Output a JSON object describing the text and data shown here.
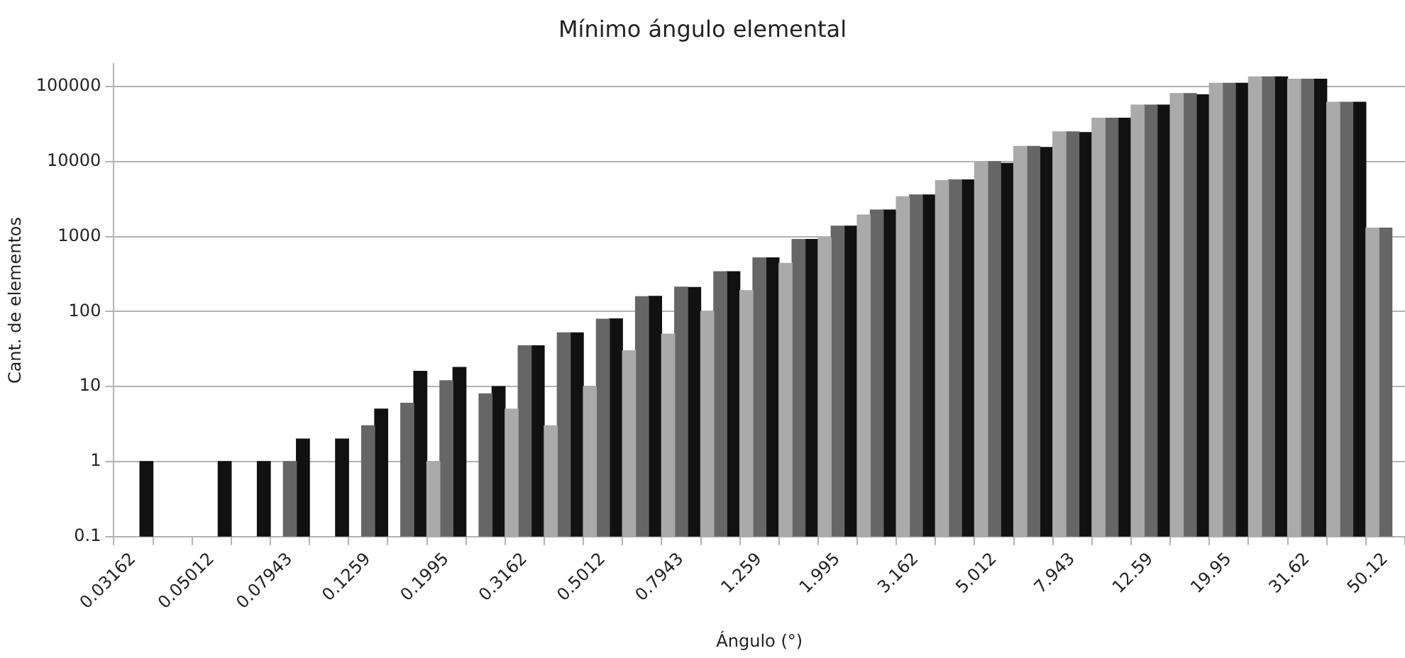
{
  "chart_data": {
    "type": "bar",
    "title": "Mínimo ángulo elemental",
    "xlabel": "Ángulo (°)",
    "ylabel": "Cant. de elementos",
    "categories": [
      "0.03162",
      null,
      "0.05012",
      null,
      "0.07943",
      null,
      "0.1259",
      null,
      "0.1995",
      null,
      "0.3162",
      null,
      "0.5012",
      null,
      "0.7943",
      null,
      "1.259",
      null,
      "1.995",
      null,
      "3.162",
      null,
      "5.012",
      null,
      "7.943",
      null,
      "12.59",
      null,
      "19.95",
      null,
      "31.62",
      null,
      "50.12"
    ],
    "series": [
      {
        "color": "#aaaaaa",
        "values": [
          null,
          null,
          null,
          null,
          null,
          null,
          null,
          null,
          1,
          null,
          5,
          3,
          10,
          30,
          50,
          100,
          190,
          440,
          960,
          1950,
          3400,
          5600,
          10000,
          16000,
          25000,
          38000,
          57000,
          81000,
          111000,
          135000,
          126000,
          62000,
          1300
        ]
      },
      {
        "color": "#666666",
        "values": [
          null,
          null,
          null,
          null,
          1,
          null,
          3,
          6,
          12,
          8,
          35,
          52,
          79,
          158,
          212,
          340,
          520,
          920,
          1380,
          2270,
          3600,
          5700,
          10000,
          16000,
          25000,
          38000,
          57000,
          81000,
          111000,
          135000,
          126000,
          62000,
          1300
        ]
      },
      {
        "color": "#111111",
        "values": [
          1,
          null,
          1,
          1,
          2,
          2,
          5,
          16,
          18,
          10,
          35,
          52,
          80,
          160,
          210,
          340,
          520,
          920,
          1380,
          2270,
          3600,
          5700,
          9500,
          15500,
          24500,
          38000,
          57000,
          78000,
          111000,
          135000,
          126000,
          62000,
          null
        ]
      }
    ],
    "log": true,
    "ylim": [
      0.1,
      200000
    ],
    "yticks": [
      0.1,
      1,
      10,
      100,
      1000,
      10000,
      100000
    ],
    "grid": "y"
  }
}
